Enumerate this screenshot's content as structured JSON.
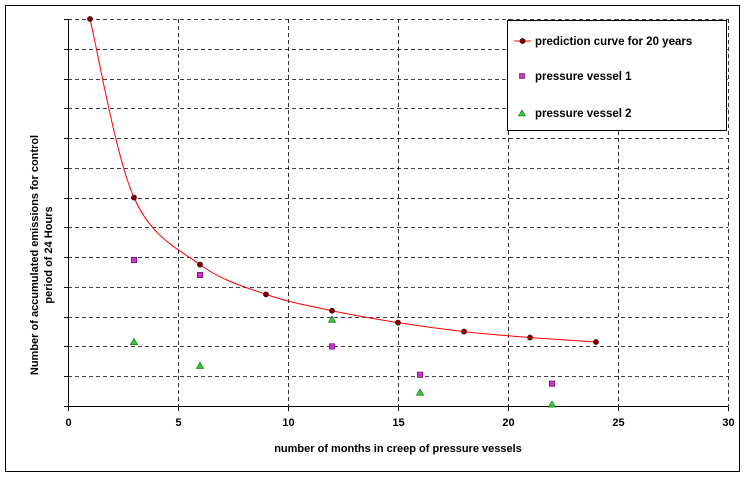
{
  "chart_data": {
    "type": "scatter",
    "title": "",
    "xlabel": "number of months in creep of pressure vessels",
    "ylabel_line1": "Number of accumulated emissions for control",
    "ylabel_line2": "period of 24 Hours",
    "xlim": [
      0,
      30
    ],
    "ylim": [
      0,
      13
    ],
    "x_ticks": [
      "0",
      "5",
      "10",
      "15",
      "20",
      "25",
      "30"
    ],
    "x_tick_values": [
      0,
      5,
      10,
      15,
      20,
      25,
      30
    ],
    "y_gridlines": [
      1,
      2,
      3,
      4,
      5,
      6,
      7,
      8,
      9,
      10,
      11,
      12,
      13
    ],
    "grid": true,
    "legend_position": "top-right",
    "series": [
      {
        "name": "prediction curve for 20 years",
        "kind": "line-with-markers",
        "color": "#ff0000",
        "marker_color": "#800000",
        "x": [
          1,
          3,
          6,
          9,
          12,
          15,
          18,
          21,
          24
        ],
        "y": [
          13.0,
          7.0,
          4.75,
          3.75,
          3.2,
          2.8,
          2.5,
          2.3,
          2.15
        ]
      },
      {
        "name": "pressure vessel 1",
        "kind": "square",
        "color": "#cc33cc",
        "x": [
          3,
          6,
          12,
          16,
          22
        ],
        "y": [
          4.9,
          4.4,
          2.0,
          1.05,
          0.75
        ]
      },
      {
        "name": "pressure vessel 2",
        "kind": "triangle",
        "color": "#33cc33",
        "x": [
          3,
          6,
          12,
          16,
          22
        ],
        "y": [
          2.15,
          1.35,
          2.9,
          0.45,
          0.05
        ]
      }
    ]
  }
}
